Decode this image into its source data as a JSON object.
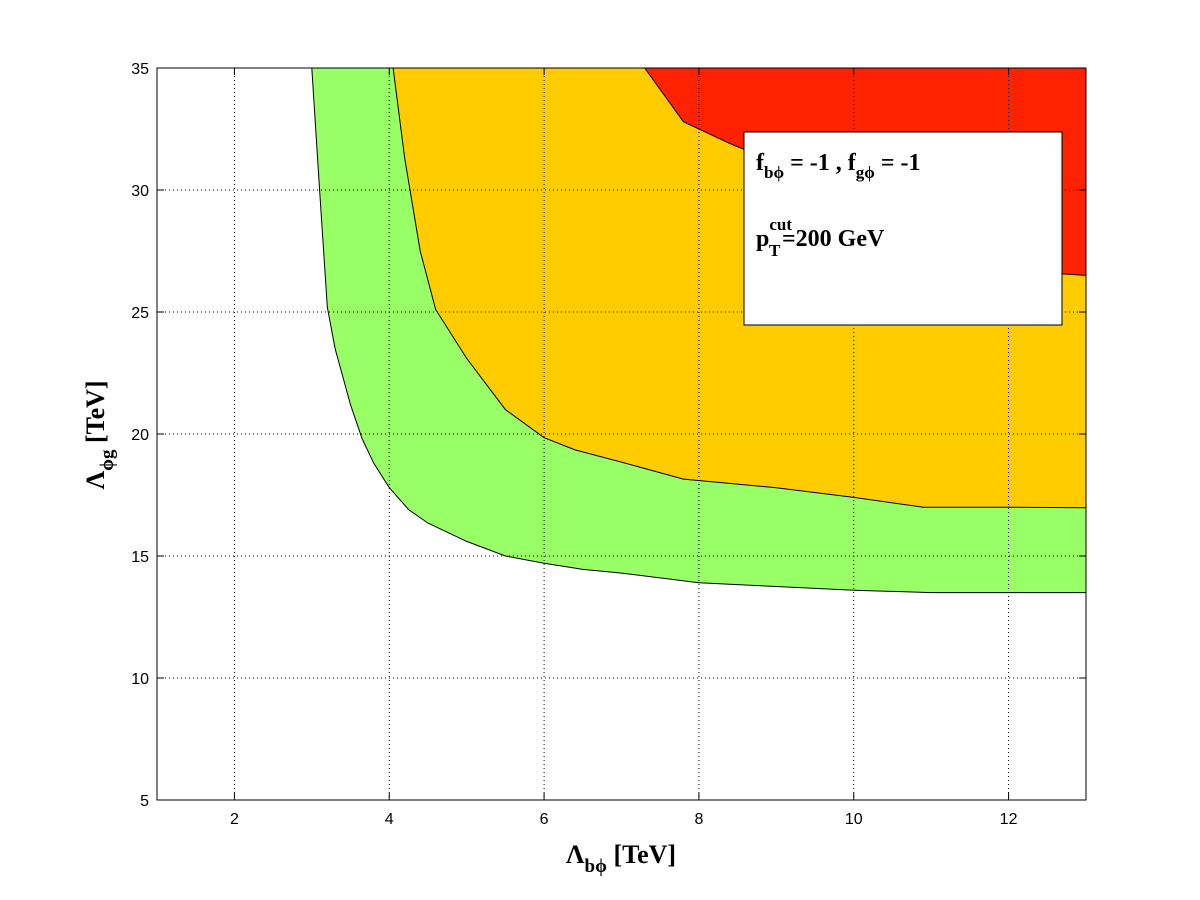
{
  "chart_data": {
    "type": "area",
    "title": "",
    "xlabel": {
      "main": "Λ",
      "sub": "bϕ",
      "unit": " [TeV]"
    },
    "ylabel": {
      "main": "Λ",
      "sub": "ϕg",
      "unit": " [TeV]"
    },
    "xlim": [
      1,
      13
    ],
    "ylim": [
      5,
      35
    ],
    "xticks": [
      2,
      4,
      6,
      8,
      10,
      12
    ],
    "yticks": [
      5,
      10,
      15,
      20,
      25,
      30,
      35
    ],
    "grid": true,
    "legend_placement": "top-right",
    "annotation": {
      "line1": [
        {
          "t": "f",
          "sub": "bϕ"
        },
        {
          "t": " = -1 , f",
          "sub": "gϕ"
        },
        {
          "t": " = -1"
        }
      ],
      "line2": {
        "base": "p",
        "sup": "cut",
        "sub": "T",
        "rest": "=200 GeV"
      }
    },
    "regions": [
      {
        "color": "#99ff66",
        "boundary": [
          [
            3.0,
            35
          ],
          [
            3.1,
            30
          ],
          [
            3.2,
            25.2
          ],
          [
            3.3,
            23.5
          ],
          [
            3.5,
            21.2
          ],
          [
            3.65,
            19.8
          ],
          [
            3.8,
            18.8
          ],
          [
            4.0,
            17.8
          ],
          [
            4.25,
            16.9
          ],
          [
            4.5,
            16.35
          ],
          [
            5.0,
            15.6
          ],
          [
            5.5,
            15.0
          ],
          [
            6.0,
            14.7
          ],
          [
            6.5,
            14.45
          ],
          [
            7.0,
            14.3
          ],
          [
            8.0,
            13.9
          ],
          [
            9.0,
            13.75
          ],
          [
            10.0,
            13.6
          ],
          [
            11.0,
            13.5
          ],
          [
            13.0,
            13.5
          ],
          [
            13,
            35
          ]
        ]
      },
      {
        "color": "#ffcc00",
        "boundary": [
          [
            4.05,
            35
          ],
          [
            4.2,
            31.3
          ],
          [
            4.4,
            27.5
          ],
          [
            4.6,
            25.1
          ],
          [
            5.0,
            23.1
          ],
          [
            5.5,
            21.0
          ],
          [
            6.0,
            19.85
          ],
          [
            6.4,
            19.35
          ],
          [
            7.0,
            18.85
          ],
          [
            7.8,
            18.15
          ],
          [
            9.0,
            17.8
          ],
          [
            10.0,
            17.4
          ],
          [
            10.9,
            17.0
          ],
          [
            12.0,
            17.0
          ],
          [
            13.0,
            16.98
          ],
          [
            13,
            35
          ]
        ]
      },
      {
        "color": "#ff2200",
        "boundary": [
          [
            7.3,
            35
          ],
          [
            7.8,
            32.8
          ],
          [
            8.4,
            31.9
          ],
          [
            12.5,
            26.6
          ],
          [
            13,
            26.5
          ],
          [
            13,
            35
          ]
        ]
      }
    ]
  }
}
